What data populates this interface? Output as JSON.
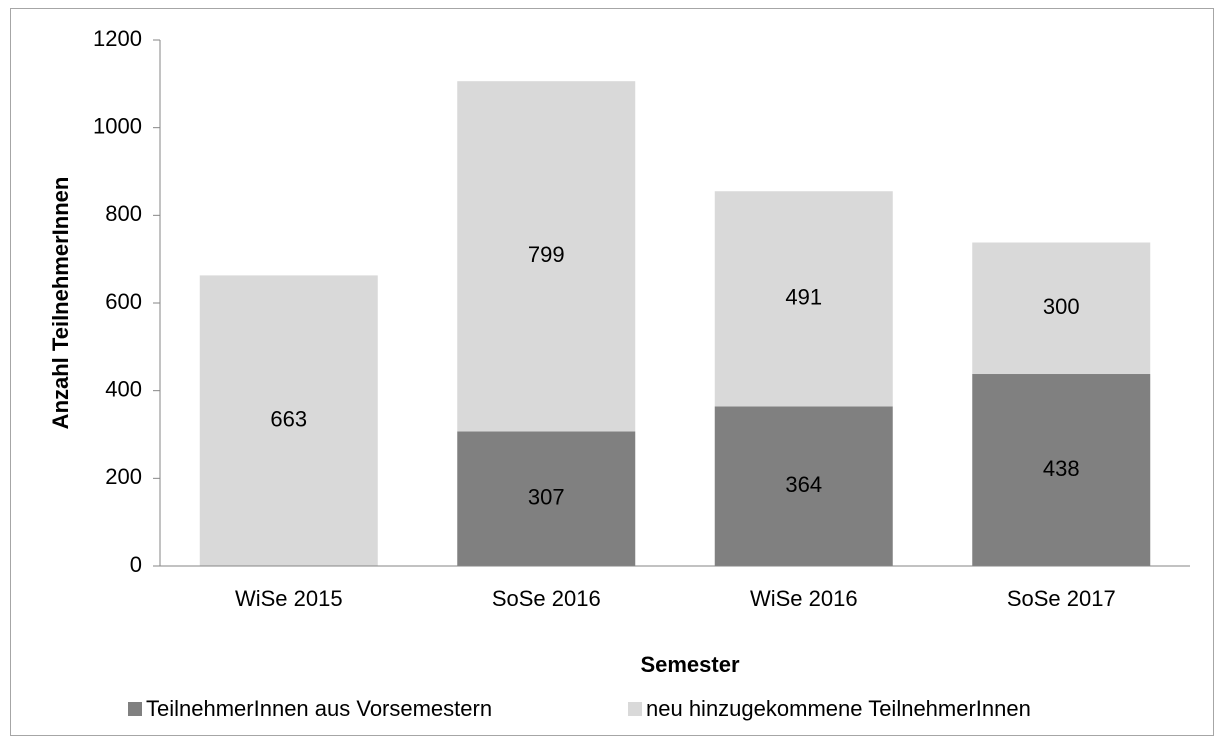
{
  "chart_data": {
    "type": "stacked_bar",
    "x_label": "Semester",
    "y_label": "Anzahl TeilnehmerInnen",
    "categories": [
      "WiSe 2015",
      "SoSe 2016",
      "WiSe 2016",
      "SoSe 2017"
    ],
    "series": [
      {
        "name": "TeilnehmerInnen aus Vorsemestern",
        "color": "#808080",
        "values": [
          null,
          307,
          364,
          438
        ]
      },
      {
        "name": "neu hinzugekommene TeilnehmerInnen",
        "color": "#d9d9d9",
        "values": [
          663,
          799,
          491,
          300
        ]
      }
    ],
    "ylim": [
      0,
      1200
    ],
    "yticks": [
      0,
      200,
      400,
      600,
      800,
      1000,
      1200
    ],
    "grid": false,
    "legend": "bottom"
  }
}
